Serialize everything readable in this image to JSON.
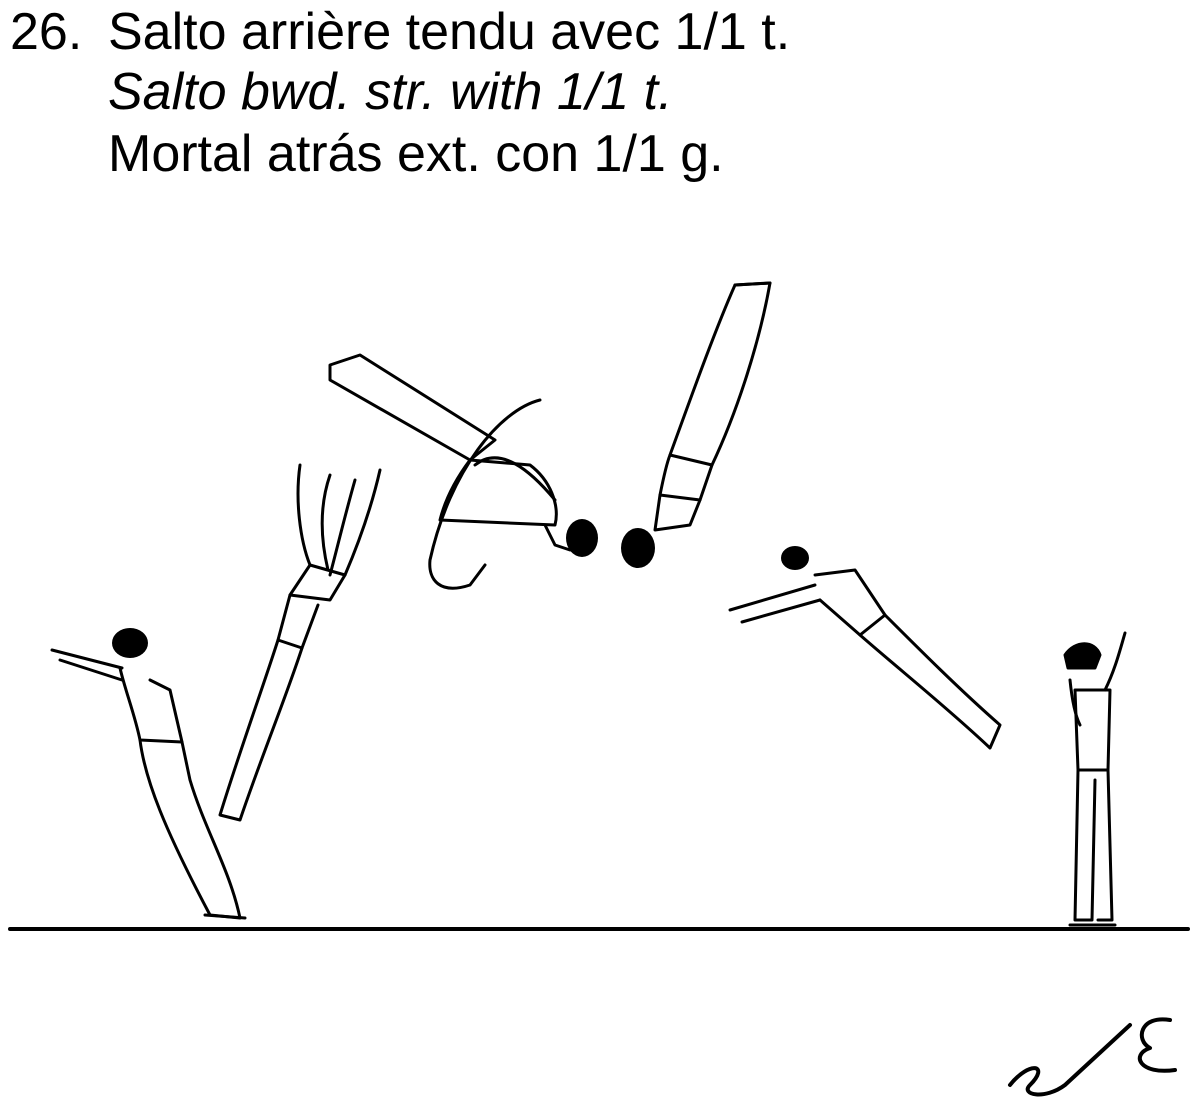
{
  "element": {
    "number": "26.",
    "name_fr": "Salto arrière tendu avec 1/1 t.",
    "name_en": "Salto bwd. str. with 1/1 t.",
    "name_es": "Mortal atrás ext. con 1/1 g."
  },
  "figure": {
    "icons": [
      "gymnast-takeoff-icon",
      "gymnast-rising-icon",
      "gymnast-twisting-icon",
      "gymnast-inverted-icon",
      "gymnast-descending-icon",
      "gymnast-landed-icon",
      "floor-line",
      "signature-mark"
    ]
  }
}
